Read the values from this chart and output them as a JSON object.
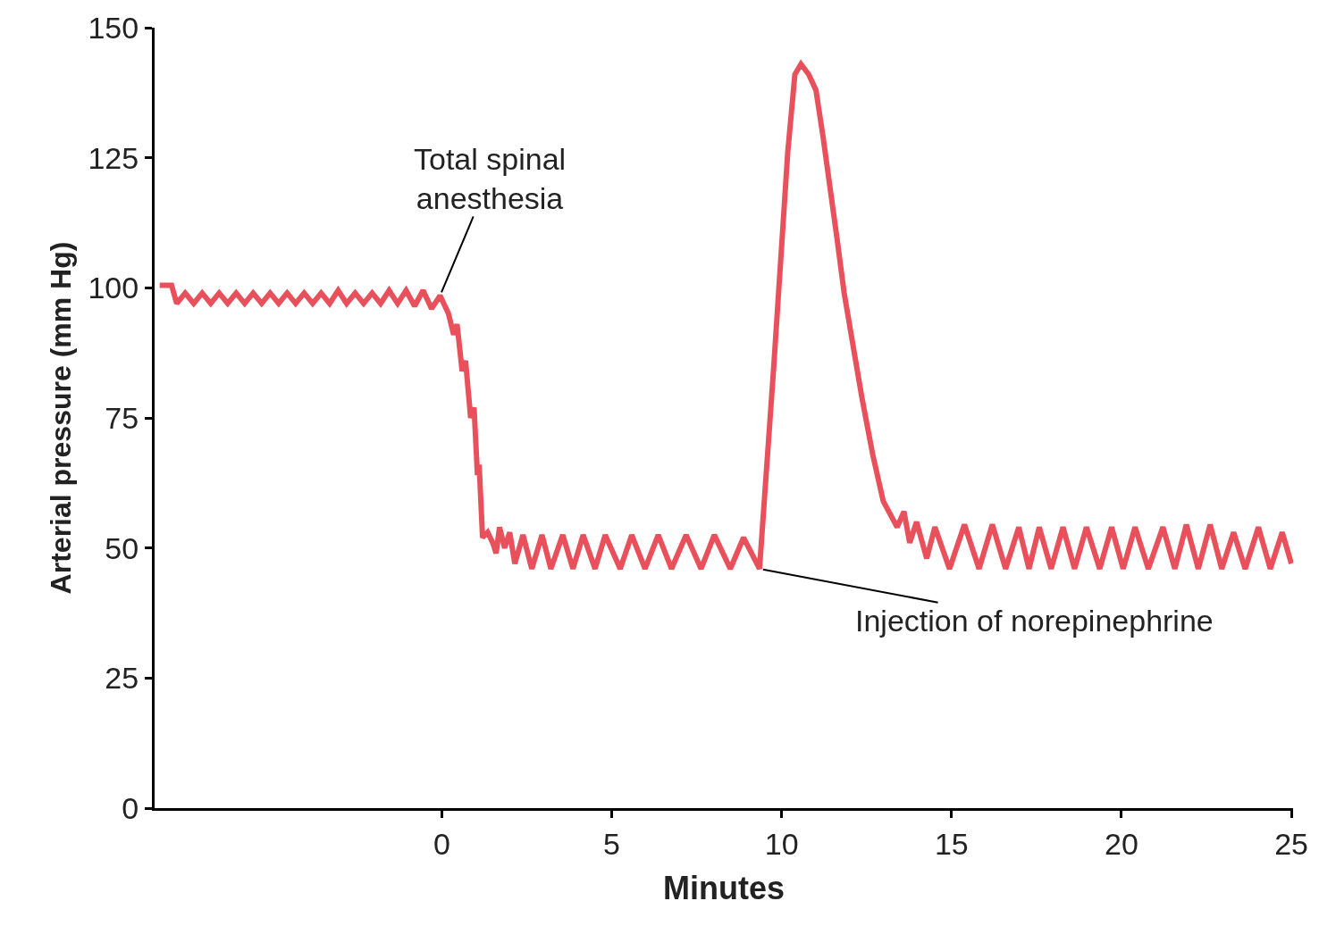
{
  "chart_data": {
    "type": "line",
    "xlabel": "Minutes",
    "ylabel": "Arterial pressure (mm Hg)",
    "xlim": [
      -8.45,
      25.05
    ],
    "xticks": [
      0,
      5,
      10,
      15,
      20,
      25
    ],
    "ylim": [
      0,
      150
    ],
    "yticks": [
      0,
      25,
      50,
      75,
      100,
      125,
      150
    ],
    "marker": "none",
    "line_style": "solid",
    "annotations": [
      {
        "text": "Total spinal\nanesthesia",
        "x": -0.05,
        "y": 98.5
      },
      {
        "text": "Injection of norepinephrine",
        "x": 9.35,
        "y": 46
      }
    ],
    "series": [
      {
        "color": "#e8505b",
        "x": [
          -8.3,
          -7.95,
          -7.8,
          -7.55,
          -7.3,
          -7.05,
          -6.8,
          -6.55,
          -6.3,
          -6.05,
          -5.8,
          -5.55,
          -5.3,
          -5.05,
          -4.8,
          -4.55,
          -4.3,
          -4.05,
          -3.8,
          -3.55,
          -3.3,
          -3.05,
          -2.8,
          -2.55,
          -2.3,
          -2.05,
          -1.8,
          -1.55,
          -1.3,
          -1.05,
          -0.8,
          -0.55,
          -0.3,
          -0.05,
          0.2,
          0.35,
          0.45,
          0.6,
          0.7,
          0.85,
          0.95,
          1.05,
          1.1,
          1.2,
          1.35,
          1.5,
          1.6,
          1.7,
          1.85,
          2.0,
          2.15,
          2.39,
          2.65,
          2.95,
          3.21,
          3.56,
          3.86,
          4.16,
          4.51,
          4.81,
          5.25,
          5.59,
          5.98,
          6.37,
          6.76,
          7.19,
          7.63,
          8.02,
          8.49,
          8.88,
          9.35,
          9.77,
          10.18,
          10.39,
          10.57,
          10.8,
          11.01,
          11.22,
          11.43,
          11.64,
          11.84,
          12.1,
          12.36,
          12.68,
          12.99,
          13.4,
          13.6,
          13.77,
          13.97,
          14.27,
          14.51,
          14.94,
          15.38,
          15.81,
          16.2,
          16.59,
          16.98,
          17.28,
          17.58,
          17.93,
          18.28,
          18.62,
          18.97,
          19.36,
          19.71,
          20.05,
          20.4,
          20.79,
          21.22,
          21.57,
          21.91,
          22.26,
          22.61,
          22.95,
          23.3,
          23.64,
          24.03,
          24.38,
          24.73,
          25.0
        ],
        "values": [
          100.5,
          100.5,
          97,
          99,
          97,
          99,
          97,
          99,
          97,
          99,
          97,
          99,
          97,
          99,
          97,
          99,
          97,
          99,
          97,
          99,
          97,
          99.5,
          97,
          99,
          97,
          99,
          97,
          99.5,
          97,
          99.5,
          96.5,
          99.5,
          96,
          98.5,
          95,
          91,
          93,
          84,
          86,
          75,
          77,
          64,
          66,
          52,
          53,
          51,
          49,
          54,
          50,
          53,
          47,
          52.5,
          46,
          52.5,
          46,
          52.5,
          46,
          52.5,
          46,
          52.5,
          46,
          52.5,
          46,
          52.5,
          46,
          52.5,
          46,
          52.5,
          46,
          52,
          46,
          85,
          126,
          141,
          143,
          141,
          138,
          129,
          119,
          109,
          99,
          89,
          79,
          68,
          59,
          54,
          57,
          51,
          55,
          48,
          54,
          46,
          54.5,
          46,
          54.5,
          46,
          54,
          46,
          54,
          46,
          54,
          46,
          54,
          46,
          54,
          46,
          54,
          46,
          54,
          46,
          54.5,
          46,
          54.5,
          46,
          53,
          46,
          54,
          46,
          53,
          47
        ]
      }
    ]
  }
}
